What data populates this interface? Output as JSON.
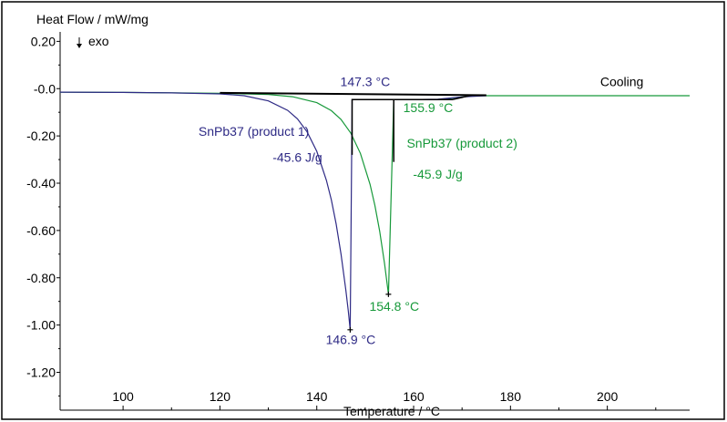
{
  "chart_data": {
    "type": "line",
    "ylabel": "Heat Flow / mW/mg",
    "xlabel": "Temperature / °C",
    "exo_label": "exo",
    "xlim": [
      87,
      217
    ],
    "ylim": [
      -1.36,
      0.24
    ],
    "x_ticks": [
      100,
      120,
      140,
      160,
      180,
      200
    ],
    "x_tick_labels": [
      "100",
      "120",
      "140",
      "160",
      "180",
      "200"
    ],
    "y_ticks": [
      0.2,
      0.0,
      -0.2,
      -0.4,
      -0.6,
      -0.8,
      -1.0,
      -1.2
    ],
    "y_tick_labels": [
      "0.20",
      "-0.0",
      "-0.20",
      "-0.40",
      "-0.60",
      "-0.80",
      "-1.00",
      "-1.20"
    ],
    "grid": false,
    "colors": {
      "product1": "#2e2a85",
      "product2": "#17993a",
      "construction": "#000000",
      "axis": "#000000"
    },
    "series": [
      {
        "name": "SnPb37 (product 1)",
        "color": "#2e2a85",
        "x": [
          87,
          100,
          110,
          120,
          125,
          130,
          134,
          136,
          138,
          140,
          142,
          143,
          144,
          145,
          146,
          146.5,
          146.9,
          147.3,
          150,
          160,
          165,
          170,
          175
        ],
        "y": [
          -0.015,
          -0.016,
          -0.018,
          -0.022,
          -0.03,
          -0.052,
          -0.092,
          -0.128,
          -0.183,
          -0.265,
          -0.388,
          -0.47,
          -0.573,
          -0.699,
          -0.852,
          -0.94,
          -1.02,
          -0.046,
          -0.046,
          -0.046,
          -0.045,
          -0.035,
          -0.03
        ]
      },
      {
        "name": "SnPb37 (product 2)",
        "color": "#17993a",
        "x": [
          87,
          100,
          110,
          120,
          130,
          135,
          140,
          143,
          145,
          147,
          149,
          151,
          152,
          153,
          154,
          154.8,
          155.9,
          160,
          165,
          168,
          172,
          180,
          217
        ],
        "y": [
          -0.015,
          -0.016,
          -0.018,
          -0.02,
          -0.025,
          -0.034,
          -0.059,
          -0.093,
          -0.13,
          -0.187,
          -0.274,
          -0.405,
          -0.494,
          -0.604,
          -0.74,
          -0.87,
          -0.046,
          -0.046,
          -0.046,
          -0.04,
          -0.03,
          -0.03,
          -0.03
        ]
      },
      {
        "name": "Cooling",
        "color": "#000000",
        "x": [
          120,
          175
        ],
        "y": [
          -0.018,
          -0.028
        ]
      }
    ],
    "construction_lines": [
      {
        "x": [
          147.3,
          147.3,
          168,
          172
        ],
        "y": [
          -0.28,
          -0.046,
          -0.046,
          -0.028
        ]
      },
      {
        "x": [
          155.9,
          155.9
        ],
        "y": [
          -0.046,
          -0.31
        ]
      }
    ],
    "annotations": [
      {
        "text": "147.3 °C",
        "x": 150,
        "y": 0.01,
        "color": "#2e2a85"
      },
      {
        "text": "155.9 °C",
        "x": 163,
        "y": -0.1,
        "color": "#17993a"
      },
      {
        "text": "Cooling",
        "x": 203,
        "y": 0.01,
        "color": "#000000"
      },
      {
        "text": "SnPb37 (product 1)",
        "x": 127,
        "y": -0.2,
        "color": "#2e2a85"
      },
      {
        "text": "-45.6 J/g",
        "x": 136,
        "y": -0.31,
        "color": "#2e2a85"
      },
      {
        "text": "SnPb37 (product 2)",
        "x": 170,
        "y": -0.25,
        "color": "#17993a"
      },
      {
        "text": "-45.9 J/g",
        "x": 165,
        "y": -0.38,
        "color": "#17993a"
      },
      {
        "text": "154.8 °C",
        "x": 156,
        "y": -0.94,
        "color": "#17993a"
      },
      {
        "text": "146.9 °C",
        "x": 147,
        "y": -1.08,
        "color": "#2e2a85"
      }
    ],
    "peak_markers": [
      {
        "x": 146.9,
        "y": -1.02
      },
      {
        "x": 154.8,
        "y": -0.87
      }
    ]
  }
}
